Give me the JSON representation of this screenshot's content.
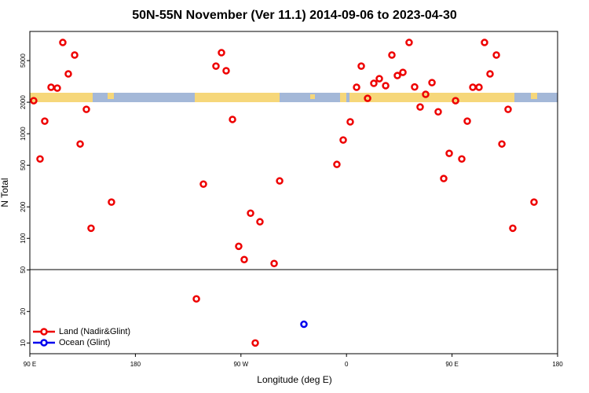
{
  "chart_data": {
    "type": "scatter",
    "title": "50N-55N November (Ver 11.1)   2014-09-06 to 2023-04-30",
    "x_label": "Longitude (deg E)",
    "y_label": "N Total",
    "log_y": true,
    "xlim": [
      90,
      540
    ],
    "xticks": [
      {
        "value": 90,
        "label": "90 E"
      },
      180,
      {
        "value": 270,
        "label": "90 W"
      },
      {
        "value": 360,
        "label": "0"
      },
      {
        "value": 450,
        "label": "90 E"
      },
      {
        "value": 540,
        "label": "180"
      }
    ],
    "ylim": [
      7.9,
      9500
    ],
    "yticks": [
      10,
      20,
      50,
      100,
      200,
      500,
      1000,
      2000,
      5000
    ],
    "legend": "bottom-left",
    "series": [
      {
        "name": "Land (Nadir&Glint)",
        "color": "#ee0000",
        "x": [
          93.3,
          98.7,
          102.7,
          108.1,
          113.4,
          118.1,
          122.8,
          128.2,
          132.9,
          138.2,
          142.2,
          159.6,
          232,
          238,
          248.7,
          253.4,
          257.4,
          262.8,
          268.1,
          272.8,
          278.2,
          286.2,
          282.2,
          298.3,
          303,
          351.8,
          357.2,
          363.2,
          368.6,
          372.6,
          378,
          383.3,
          388,
          393.4,
          398.7,
          403.4,
          408.1,
          413.4,
          418.1,
          422.8,
          427.5,
          432.9,
          438.2,
          442.9,
          447.6,
          453,
          458.3,
          463,
          467.7,
          473,
          477.7,
          482.4,
          487.8,
          492.5,
          497.8,
          501.8,
          519.9
        ],
        "values": [
          2070,
          574,
          1320,
          2780,
          2730,
          7450,
          3730,
          5650,
          798,
          1710,
          125,
          222,
          26.4,
          330,
          4430,
          5950,
          4000,
          1370,
          84,
          62.7,
          174,
          144,
          10,
          57.5,
          354,
          509,
          871,
          1300,
          2780,
          4430,
          2180,
          3030,
          3360,
          2880,
          5650,
          3600,
          3860,
          7450,
          2800,
          1800,
          2380,
          3080,
          1620,
          373,
          649,
          2070,
          574,
          1320,
          2780,
          2780,
          7450,
          3730,
          5650,
          798,
          1710,
          125,
          222
        ]
      },
      {
        "name": "Ocean (Glint)",
        "color": "#0000ee",
        "x": [
          323.7
        ],
        "values": [
          15.1
        ]
      }
    ]
  }
}
